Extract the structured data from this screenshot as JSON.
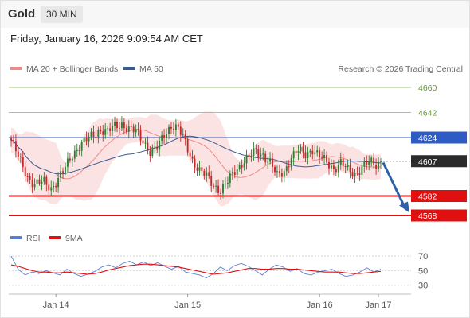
{
  "header": {
    "title": "Gold",
    "interval": "30 MIN",
    "timestamp": "Friday, January 16, 2026 9:09:54 AM CET"
  },
  "copyright": "Research © 2026 Trading Central",
  "colors": {
    "candle_up": "#2e7d32",
    "candle_down": "#c62828",
    "bollinger_fill": "#fbdada",
    "ma20": "#f08a8a",
    "ma50": "#3a5a95",
    "resistance_green": "#9ccb7a",
    "pivot_blue": "#2e5cc4",
    "support_red": "#e01010",
    "arrow": "#2f5fa5",
    "rsi": "#5b7fd6",
    "rsi_ma": "#e01010"
  },
  "chart_data": [
    {
      "type": "candlestick",
      "name": "price-panel",
      "ylim": [
        4560,
        4668
      ],
      "legend": [
        {
          "label": "MA 20 + Bollinger Bands",
          "color": "#f08a8a"
        },
        {
          "label": "MA 50",
          "color": "#3a5a95"
        }
      ],
      "x_ticks": [
        {
          "label": "Jan 14",
          "index": 19
        },
        {
          "label": "Jan 15",
          "index": 75
        },
        {
          "label": "Jan 16",
          "index": 131
        },
        {
          "label": "Jan 17",
          "index": 156
        }
      ],
      "levels": [
        {
          "value": 4660,
          "label": "4660",
          "kind": "resistance",
          "color": "#9ccb7a",
          "weight": 1
        },
        {
          "value": 4642,
          "label": "4642",
          "kind": "resistance",
          "color": "#9ccb7a",
          "weight": 1
        },
        {
          "value": 4624,
          "label": "4624",
          "kind": "pivot",
          "color": "#2e5cc4",
          "weight": 1
        },
        {
          "value": 4582,
          "label": "4582",
          "kind": "support",
          "color": "#e01010",
          "weight": 2
        },
        {
          "value": 4568,
          "label": "4568",
          "kind": "support",
          "color": "#e01010",
          "weight": 2
        }
      ],
      "last_price": {
        "value": 4607,
        "label": "4607"
      },
      "forecast_arrow": {
        "from": 4606,
        "to": 4570
      },
      "anchors": [
        {
          "i": 0,
          "c": 4622
        },
        {
          "i": 3,
          "c": 4610
        },
        {
          "i": 7,
          "c": 4596
        },
        {
          "i": 10,
          "c": 4590
        },
        {
          "i": 14,
          "c": 4592
        },
        {
          "i": 17,
          "c": 4588
        },
        {
          "i": 20,
          "c": 4594
        },
        {
          "i": 23,
          "c": 4602
        },
        {
          "i": 26,
          "c": 4612
        },
        {
          "i": 29,
          "c": 4618
        },
        {
          "i": 32,
          "c": 4622
        },
        {
          "i": 35,
          "c": 4626
        },
        {
          "i": 38,
          "c": 4630
        },
        {
          "i": 41,
          "c": 4628
        },
        {
          "i": 44,
          "c": 4632
        },
        {
          "i": 47,
          "c": 4634
        },
        {
          "i": 50,
          "c": 4630
        },
        {
          "i": 53,
          "c": 4628
        },
        {
          "i": 56,
          "c": 4622
        },
        {
          "i": 59,
          "c": 4614
        },
        {
          "i": 62,
          "c": 4616
        },
        {
          "i": 65,
          "c": 4626
        },
        {
          "i": 68,
          "c": 4633
        },
        {
          "i": 71,
          "c": 4630
        },
        {
          "i": 74,
          "c": 4620
        },
        {
          "i": 77,
          "c": 4608
        },
        {
          "i": 80,
          "c": 4600
        },
        {
          "i": 83,
          "c": 4596
        },
        {
          "i": 86,
          "c": 4590
        },
        {
          "i": 89,
          "c": 4586
        },
        {
          "i": 92,
          "c": 4592
        },
        {
          "i": 95,
          "c": 4600
        },
        {
          "i": 98,
          "c": 4606
        },
        {
          "i": 101,
          "c": 4610
        },
        {
          "i": 104,
          "c": 4614
        },
        {
          "i": 107,
          "c": 4612
        },
        {
          "i": 110,
          "c": 4606
        },
        {
          "i": 113,
          "c": 4596
        },
        {
          "i": 116,
          "c": 4600
        },
        {
          "i": 119,
          "c": 4610
        },
        {
          "i": 122,
          "c": 4614
        },
        {
          "i": 125,
          "c": 4612
        },
        {
          "i": 128,
          "c": 4616
        },
        {
          "i": 131,
          "c": 4610
        },
        {
          "i": 134,
          "c": 4606
        },
        {
          "i": 137,
          "c": 4602
        },
        {
          "i": 140,
          "c": 4606
        },
        {
          "i": 143,
          "c": 4600
        },
        {
          "i": 146,
          "c": 4598
        },
        {
          "i": 149,
          "c": 4603
        },
        {
          "i": 152,
          "c": 4606
        },
        {
          "i": 155,
          "c": 4604
        },
        {
          "i": 157,
          "c": 4607
        }
      ]
    },
    {
      "type": "line",
      "name": "rsi-panel",
      "ylim": [
        22,
        80
      ],
      "legend": [
        {
          "label": "RSI",
          "color": "#5b7fd6"
        },
        {
          "label": "9MA",
          "color": "#e01010"
        }
      ],
      "y_ticks": [
        70,
        50,
        30
      ],
      "series": [
        {
          "name": "RSI",
          "values": [
            70,
            52,
            44,
            48,
            46,
            50,
            47,
            44,
            52,
            46,
            42,
            45,
            49,
            55,
            58,
            54,
            60,
            63,
            58,
            62,
            57,
            61,
            56,
            52,
            56,
            48,
            46,
            44,
            40,
            46,
            55,
            50,
            57,
            60,
            56,
            50,
            44,
            52,
            58,
            55,
            49,
            53,
            46,
            44,
            48,
            50,
            52,
            46,
            42,
            44,
            48,
            54,
            48,
            52
          ]
        },
        {
          "name": "9MA",
          "values": [
            58,
            56,
            53,
            50,
            48,
            48,
            47,
            47,
            48,
            47,
            46,
            45,
            46,
            48,
            51,
            53,
            55,
            57,
            58,
            59,
            59,
            58,
            57,
            56,
            55,
            53,
            51,
            49,
            47,
            45,
            46,
            47,
            49,
            51,
            53,
            53,
            52,
            52,
            53,
            53,
            52,
            52,
            51,
            50,
            49,
            48,
            48,
            48,
            47,
            46,
            46,
            47,
            48,
            49
          ]
        }
      ]
    }
  ]
}
